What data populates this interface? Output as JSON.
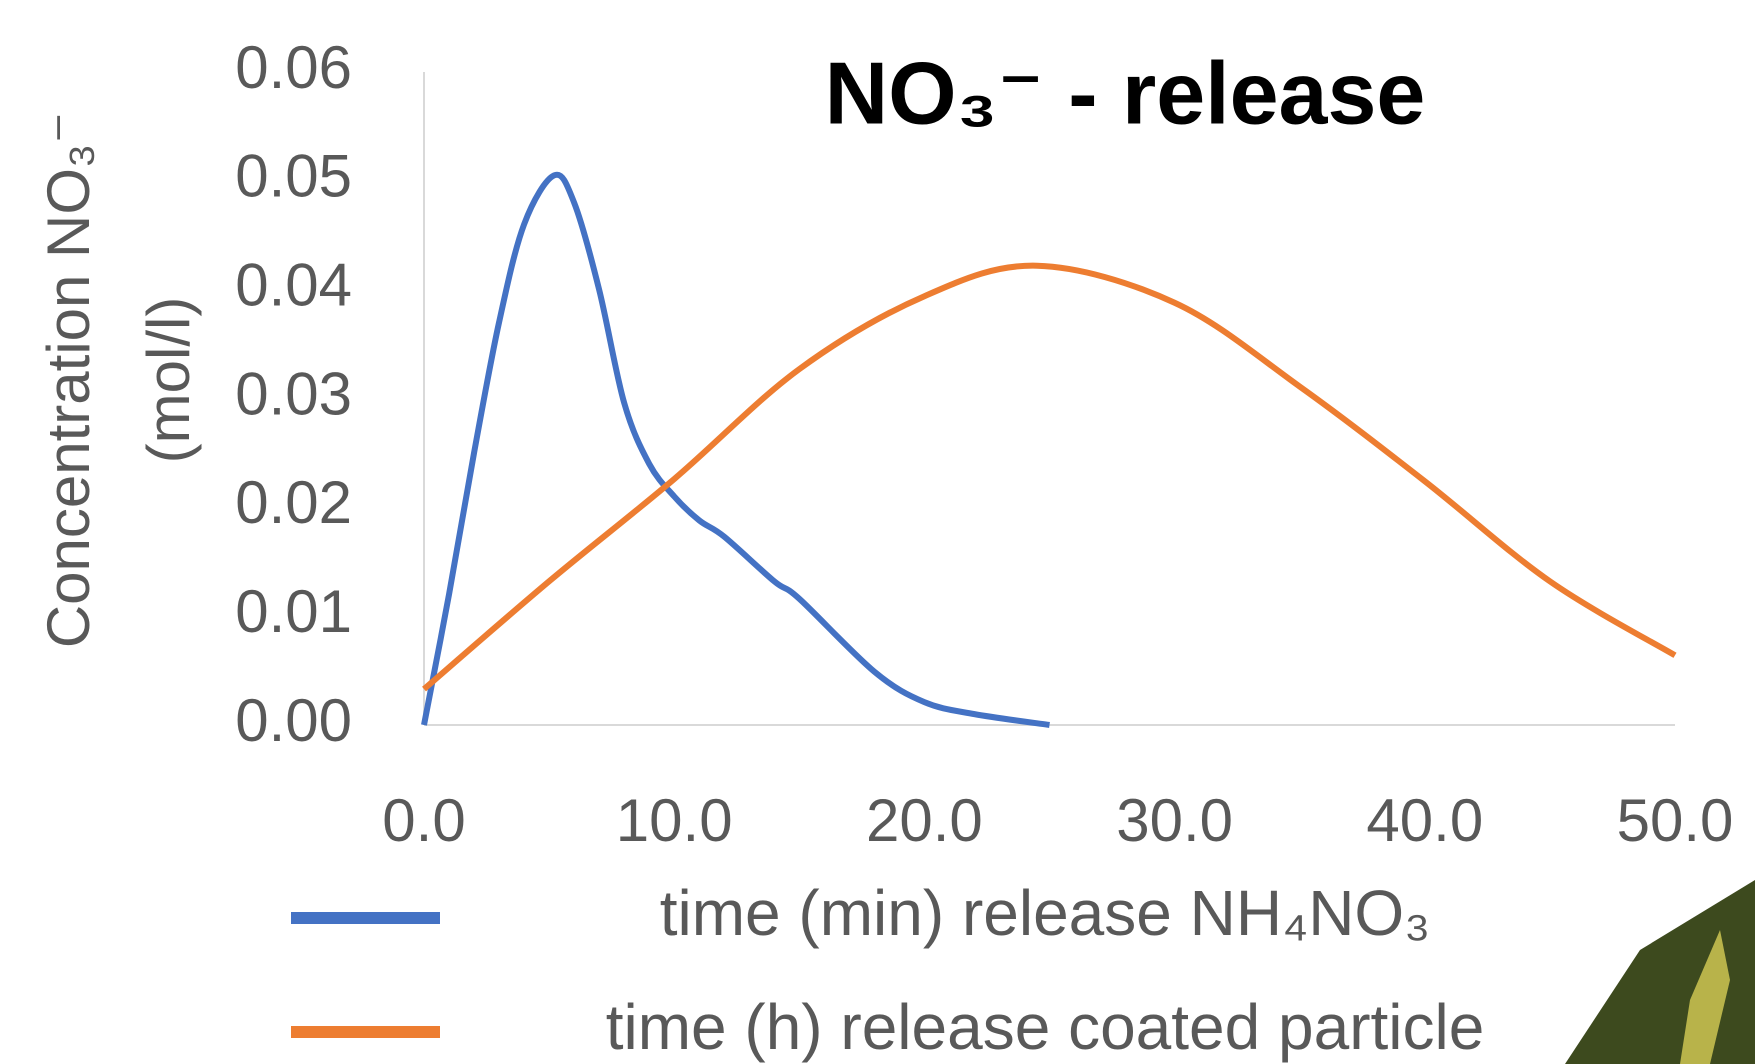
{
  "chart_data": {
    "type": "line",
    "title": "NO₃⁻ - release",
    "y_label": [
      "Concentration NO₃⁻",
      "(mol/l)"
    ],
    "series": [
      {
        "name": "time (min) release NH₄NO₃",
        "color": "#4472c4",
        "x": [
          0,
          1,
          2,
          3,
          4,
          5.2,
          6,
          7,
          8,
          9,
          10,
          11,
          12,
          14,
          15,
          18,
          20,
          22,
          25
        ],
        "values": [
          0,
          0.012,
          0.025,
          0.037,
          0.046,
          0.0505,
          0.048,
          0.04,
          0.0296,
          0.024,
          0.021,
          0.0188,
          0.0173,
          0.0132,
          0.0116,
          0.0049,
          0.0021,
          0.001,
          0
        ]
      },
      {
        "name": "time (h) release coated particle",
        "color": "#ed7d31",
        "x": [
          0,
          5,
          10,
          15,
          20,
          24.5,
          30,
          35,
          40,
          45,
          50
        ],
        "values": [
          0.0033,
          0.0132,
          0.0226,
          0.0327,
          0.0394,
          0.0422,
          0.0388,
          0.0311,
          0.0224,
          0.0132,
          0.0064
        ]
      }
    ],
    "xlim": [
      0,
      50
    ],
    "xticks": [
      {
        "value": 0,
        "label": "0.0"
      },
      {
        "value": 10,
        "label": "10.0"
      },
      {
        "value": 20,
        "label": "20.0"
      },
      {
        "value": 30,
        "label": "30.0"
      },
      {
        "value": 40,
        "label": "40.0"
      },
      {
        "value": 50,
        "label": "50.0"
      }
    ],
    "ylim": [
      0,
      0.06
    ],
    "yticks": [
      {
        "value": 0,
        "label": "0.00"
      },
      0.01,
      0.02,
      0.03,
      0.04,
      0.05,
      0.06
    ],
    "grid": false
  }
}
